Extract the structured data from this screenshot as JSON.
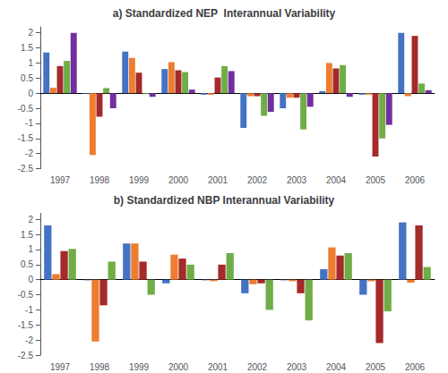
{
  "chart_data": [
    {
      "type": "bar",
      "title": "a) Standardized NEP  Interannual Variability",
      "categories": [
        "1997",
        "1998",
        "1999",
        "2000",
        "2001",
        "2002",
        "2003",
        "2004",
        "2005",
        "2006"
      ],
      "series": [
        {
          "color": "#4472C4",
          "values": [
            1.35,
            -0.02,
            1.38,
            0.8,
            -0.05,
            -1.15,
            -0.5,
            0.07,
            -0.05,
            2.0
          ]
        },
        {
          "color": "#ED7D31",
          "values": [
            0.18,
            -2.05,
            1.17,
            1.03,
            -0.05,
            -0.1,
            -0.15,
            1.0,
            -0.05,
            -0.1
          ]
        },
        {
          "color": "#A52A2A",
          "values": [
            0.9,
            -0.78,
            0.68,
            0.76,
            0.52,
            -0.1,
            -0.15,
            0.82,
            -2.1,
            1.9
          ]
        },
        {
          "color": "#70AD47",
          "values": [
            1.07,
            0.17,
            -0.03,
            0.7,
            0.9,
            -0.75,
            -1.2,
            0.93,
            -1.5,
            0.32
          ]
        },
        {
          "color": "#7030A0",
          "values": [
            2.0,
            -0.5,
            -0.12,
            0.12,
            0.73,
            -0.62,
            -0.45,
            -0.12,
            -1.05,
            0.1
          ]
        }
      ],
      "ylim": [
        -2.5,
        2.2
      ],
      "yticks": [
        -2.5,
        -2,
        -1.5,
        -1,
        -0.5,
        0,
        0.5,
        1,
        1.5,
        2
      ],
      "grid": false
    },
    {
      "type": "bar",
      "title": "b) Standardized NBP Interannual Variability",
      "categories": [
        "1997",
        "1998",
        "1999",
        "2000",
        "2001",
        "2002",
        "2003",
        "2004",
        "2005",
        "2006"
      ],
      "series": [
        {
          "color": "#4472C4",
          "values": [
            1.8,
            -0.02,
            1.2,
            -0.12,
            -0.02,
            -0.45,
            -0.02,
            0.35,
            -0.5,
            1.9
          ]
        },
        {
          "color": "#ED7D31",
          "values": [
            0.18,
            -2.05,
            1.2,
            0.83,
            -0.05,
            -0.15,
            -0.05,
            1.07,
            -0.05,
            -0.1
          ]
        },
        {
          "color": "#A52A2A",
          "values": [
            0.95,
            -0.85,
            0.6,
            0.7,
            0.5,
            -0.12,
            -0.45,
            0.8,
            -2.1,
            1.8
          ]
        },
        {
          "color": "#70AD47",
          "values": [
            1.02,
            0.6,
            -0.5,
            0.5,
            0.88,
            -1.0,
            -1.35,
            0.88,
            -1.05,
            0.42
          ]
        }
      ],
      "ylim": [
        -2.5,
        2.2
      ],
      "yticks": [
        -2.5,
        -2,
        -1.5,
        -1,
        -0.5,
        0,
        0.5,
        1,
        1.5,
        2
      ],
      "grid": false
    }
  ]
}
